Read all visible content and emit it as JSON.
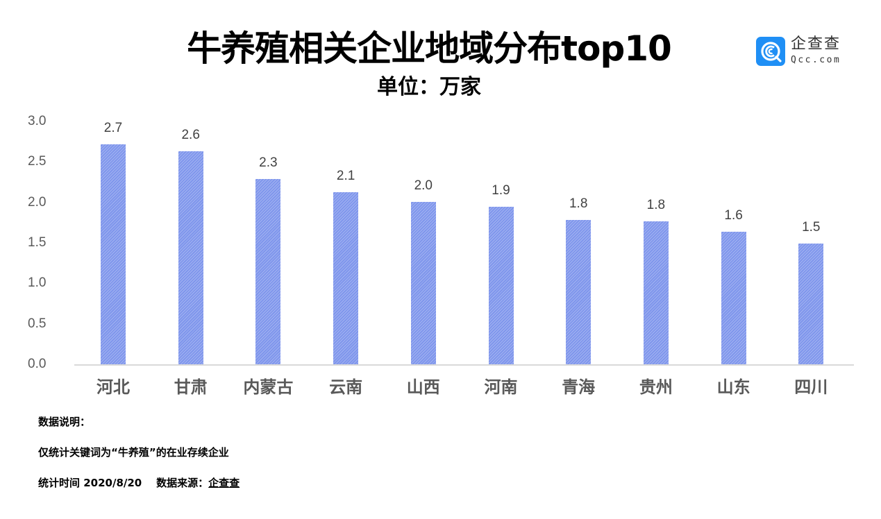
{
  "header": {
    "title": "牛养殖相关企业地域分布top10",
    "subtitle": "单位：万家"
  },
  "logo": {
    "icon": "qcc-logo-icon",
    "name_cn": "企查查",
    "domain": "Qcc.com",
    "brand_color": "#1f8ff5"
  },
  "chart_data": {
    "type": "bar",
    "title": "牛养殖相关企业地域分布top10",
    "subtitle": "单位：万家",
    "xlabel": "",
    "ylabel": "",
    "unit": "万家",
    "categories": [
      "河北",
      "甘肃",
      "内蒙古",
      "云南",
      "山西",
      "河南",
      "青海",
      "贵州",
      "山东",
      "四川"
    ],
    "values": [
      2.7,
      2.6,
      2.3,
      2.1,
      2.0,
      1.9,
      1.8,
      1.8,
      1.6,
      1.5
    ],
    "bar_heights_estimated": [
      2.72,
      2.63,
      2.29,
      2.13,
      2.01,
      1.95,
      1.78,
      1.77,
      1.64,
      1.49
    ],
    "data_labels": [
      "2.7",
      "2.6",
      "2.3",
      "2.1",
      "2.0",
      "1.9",
      "1.8",
      "1.8",
      "1.6",
      "1.5"
    ],
    "ylim": [
      0,
      3.0
    ],
    "yticks": [
      "0.0",
      "0.5",
      "1.0",
      "1.5",
      "2.0",
      "2.5",
      "3.0"
    ],
    "grid": false,
    "legend": null,
    "bar_color": "#7f96ec"
  },
  "notes": {
    "heading": "数据说明：",
    "line1": "仅统计关键词为“牛养殖”的在业存续企业",
    "line2_prefix": "统计时间 2020/8/20    数据来源：",
    "line2_source": "企查查"
  }
}
